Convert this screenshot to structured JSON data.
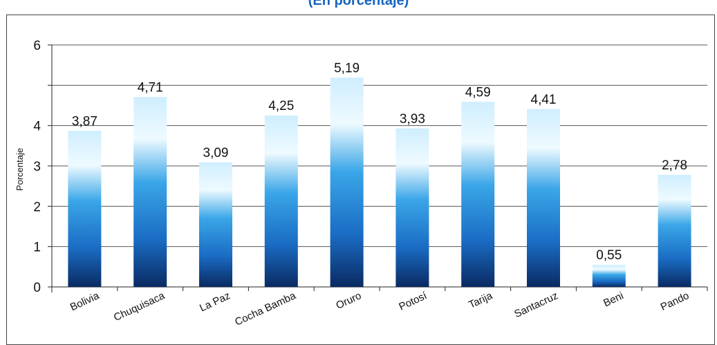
{
  "chart_data": {
    "type": "bar",
    "title": "(En porcentaje)",
    "ylabel": "Porcentaje",
    "xlabel": "",
    "categories": [
      "Bolivia",
      "Chuquisaca",
      "La Paz",
      "Cocha Bamba",
      "Oruro",
      "Potosí",
      "Tarija",
      "Santacruz",
      "Beni",
      "Pando"
    ],
    "values": [
      3.87,
      4.71,
      3.09,
      4.25,
      5.19,
      3.93,
      4.59,
      4.41,
      0.55,
      2.78
    ],
    "value_labels": [
      "3,87",
      "4,71",
      "3,09",
      "4,25",
      "5,19",
      "3,93",
      "4,59",
      "4,41",
      "0,55",
      "2,78"
    ],
    "ylim": [
      0,
      6
    ],
    "yticks": [
      0,
      1,
      2,
      3,
      4,
      5,
      6
    ],
    "ytick_labels": [
      "0",
      "1",
      "2",
      "3",
      "4",
      "",
      "6"
    ],
    "grid": true,
    "colors": {
      "bar_top": "#e8f6ff",
      "bar_mid": "#2a8fd6",
      "bar_bottom": "#0d2f6b",
      "title": "#1565c0"
    }
  }
}
